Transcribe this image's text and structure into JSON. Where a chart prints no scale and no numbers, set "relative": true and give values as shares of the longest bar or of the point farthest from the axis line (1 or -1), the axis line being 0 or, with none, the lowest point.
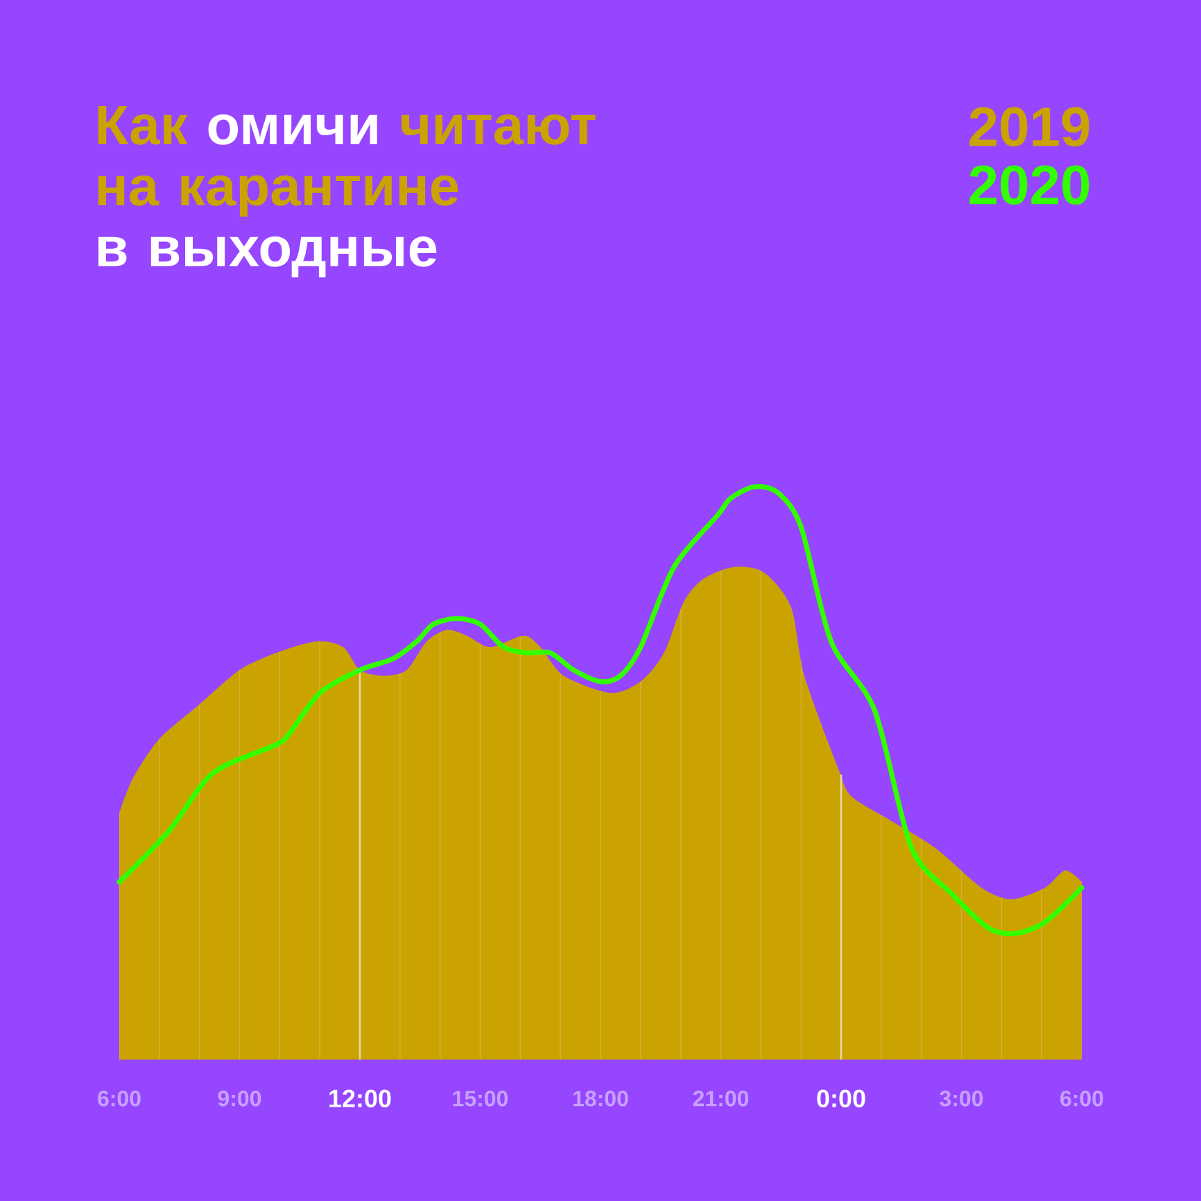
{
  "chart_data": {
    "type": "area",
    "title": "Как **омичи** читают на карантине",
    "subtitle": "в выходные",
    "relative": true,
    "xlim": [
      "2020-01-01T06:00",
      "2020-01-02T06:00"
    ],
    "xticks": [
      {
        "value": "2020-01-01T06:00",
        "label": "6:00"
      },
      {
        "value": "2020-01-01T07:00",
        "label": null
      },
      {
        "value": "2020-01-01T08:00",
        "label": null
      },
      {
        "value": "2020-01-01T09:00",
        "label": "9:00"
      },
      {
        "value": "2020-01-01T10:00",
        "label": null
      },
      {
        "value": "2020-01-01T11:00",
        "label": null
      },
      {
        "value": "2020-01-01T12:00",
        "label": "12:00"
      },
      {
        "value": "2020-01-01T13:00",
        "label": null
      },
      {
        "value": "2020-01-01T14:00",
        "label": null
      },
      {
        "value": "2020-01-01T15:00",
        "label": "15:00"
      },
      {
        "value": "2020-01-01T16:00",
        "label": null
      },
      {
        "value": "2020-01-01T17:00",
        "label": null
      },
      {
        "value": "2020-01-01T18:00",
        "label": "18:00"
      },
      {
        "value": "2020-01-01T19:00",
        "label": null
      },
      {
        "value": "2020-01-01T20:00",
        "label": null
      },
      {
        "value": "2020-01-01T21:00",
        "label": "21:00"
      },
      {
        "value": "2020-01-01T22:00",
        "label": null
      },
      {
        "value": "2020-01-01T23:00",
        "label": null
      },
      {
        "value": "2020-01-02T00:00",
        "label": "0:00"
      },
      {
        "value": "2020-01-02T01:00",
        "label": null
      },
      {
        "value": "2020-01-02T02:00",
        "label": null
      },
      {
        "value": "2020-01-02T03:00",
        "label": "3:00"
      },
      {
        "value": "2020-01-02T04:00",
        "label": null
      },
      {
        "value": "2020-01-02T05:00",
        "label": null
      },
      {
        "value": "2020-01-02T06:00",
        "label": "6:00"
      }
    ],
    "grid": "x",
    "legend": "top right",
    "ref_lines": [
      {
        "axis": "x",
        "value": "2020-01-01T12:00",
        "color": "#e6d9a6"
      },
      {
        "axis": "x",
        "value": "2020-01-02T00:00",
        "color": "#e6d9a6"
      }
    ],
    "series": [
      {
        "name": "2019",
        "color": "#cba300",
        "x": [
          "2020-01-01T06:00",
          "2020-01-01T06:20",
          "2020-01-01T07:00",
          "2020-01-01T08:00",
          "2020-01-01T09:00",
          "2020-01-01T09:55",
          "2020-01-01T10:55",
          "2020-01-01T11:35",
          "2020-01-01T12:00",
          "2020-01-01T12:35",
          "2020-01-01T13:10",
          "2020-01-01T13:40",
          "2020-01-01T14:10",
          "2020-01-01T14:40",
          "2020-01-01T15:15",
          "2020-01-01T16:05",
          "2020-01-01T16:30",
          "2020-01-01T17:05",
          "2020-01-01T18:15",
          "2020-01-01T19:00",
          "2020-01-01T19:35",
          "2020-01-01T20:05",
          "2020-01-01T20:35",
          "2020-01-01T21:20",
          "2020-01-01T22:05",
          "2020-01-01T22:45",
          "2020-01-01T23:05",
          "2020-01-01T23:55",
          "2020-01-02T00:15",
          "2020-01-02T01:10",
          "2020-01-02T02:20",
          "2020-01-02T03:30",
          "2020-01-02T04:15",
          "2020-01-02T05:05",
          "2020-01-02T05:35",
          "2020-01-02T06:00"
        ],
        "values": [
          0.43,
          0.49,
          0.56,
          0.62,
          0.68,
          0.71,
          0.73,
          0.72,
          0.68,
          0.67,
          0.68,
          0.73,
          0.75,
          0.74,
          0.72,
          0.74,
          0.72,
          0.67,
          0.64,
          0.66,
          0.71,
          0.8,
          0.84,
          0.86,
          0.85,
          0.79,
          0.67,
          0.51,
          0.46,
          0.42,
          0.37,
          0.3,
          0.28,
          0.3,
          0.33,
          0.31
        ]
      },
      {
        "name": "2020",
        "type": "line",
        "color": "#33ff00",
        "x": [
          "2020-01-01T06:00",
          "2020-01-01T07:15",
          "2020-01-01T08:20",
          "2020-01-01T09:55",
          "2020-01-01T10:15",
          "2020-01-01T11:00",
          "2020-01-01T12:00",
          "2020-01-01T12:50",
          "2020-01-01T13:25",
          "2020-01-01T13:50",
          "2020-01-01T14:25",
          "2020-01-01T15:00",
          "2020-01-01T15:35",
          "2020-01-01T16:10",
          "2020-01-01T16:45",
          "2020-01-01T17:20",
          "2020-01-01T18:00",
          "2020-01-01T18:30",
          "2020-01-01T19:00",
          "2020-01-01T19:50",
          "2020-01-01T20:55",
          "2020-01-01T21:15",
          "2020-01-01T21:50",
          "2020-01-01T22:25",
          "2020-01-01T23:00",
          "2020-01-01T23:45",
          "2020-01-02T00:50",
          "2020-01-02T01:45",
          "2020-01-02T02:45",
          "2020-01-02T03:40",
          "2020-01-02T04:20",
          "2020-01-02T05:05",
          "2020-01-02T06:00"
        ],
        "values": [
          0.31,
          0.4,
          0.5,
          0.55,
          0.57,
          0.64,
          0.68,
          0.7,
          0.73,
          0.76,
          0.77,
          0.76,
          0.72,
          0.71,
          0.71,
          0.68,
          0.66,
          0.67,
          0.72,
          0.86,
          0.95,
          0.98,
          1.0,
          0.99,
          0.93,
          0.73,
          0.61,
          0.37,
          0.29,
          0.23,
          0.22,
          0.24,
          0.3
        ]
      }
    ]
  }
}
